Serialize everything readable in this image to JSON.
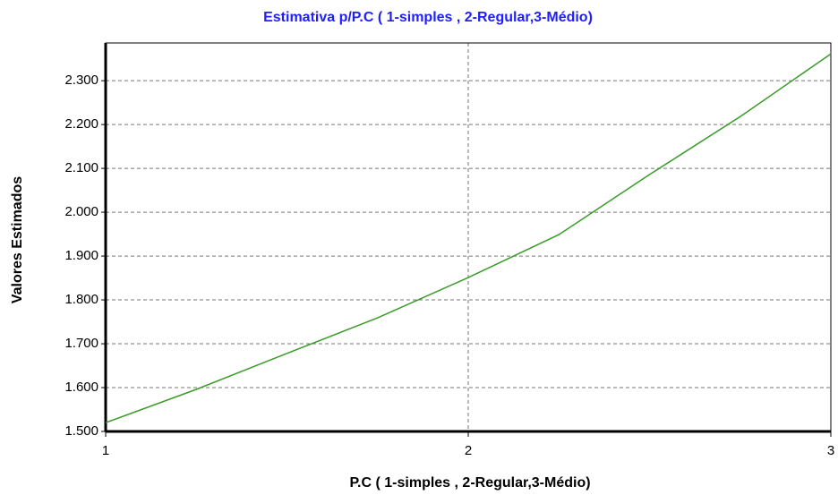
{
  "chart_data": {
    "type": "line",
    "title": "Estimativa p/P.C ( 1-simples , 2-Regular,3-Médio)",
    "x_label": "P.C ( 1-simples , 2-Regular,3-Médio)",
    "y_label": "Valores Estimados",
    "x": [
      1,
      1.25,
      1.5,
      1.75,
      2,
      2.25,
      2.5,
      2.75,
      3
    ],
    "values": [
      1520,
      1596,
      1678,
      1759,
      1851,
      1949,
      2086,
      2218,
      2361
    ],
    "color": "#3a9a2a",
    "title_color": "#2020ff",
    "xlim": [
      1,
      3
    ],
    "xticks": [
      1,
      2,
      3
    ],
    "ylim": [
      1500,
      2386
    ],
    "yticks": [
      {
        "value": 1500,
        "label": "1.500"
      },
      {
        "value": 1600,
        "label": "1.600"
      },
      {
        "value": 1700,
        "label": "1.700"
      },
      {
        "value": 1800,
        "label": "1.800"
      },
      {
        "value": 1900,
        "label": "1.900"
      },
      {
        "value": 2000,
        "label": "2.000"
      },
      {
        "value": 2100,
        "label": "2.100"
      },
      {
        "value": 2200,
        "label": "2.200"
      },
      {
        "value": 2300,
        "label": "2.300"
      }
    ],
    "grid": true
  }
}
